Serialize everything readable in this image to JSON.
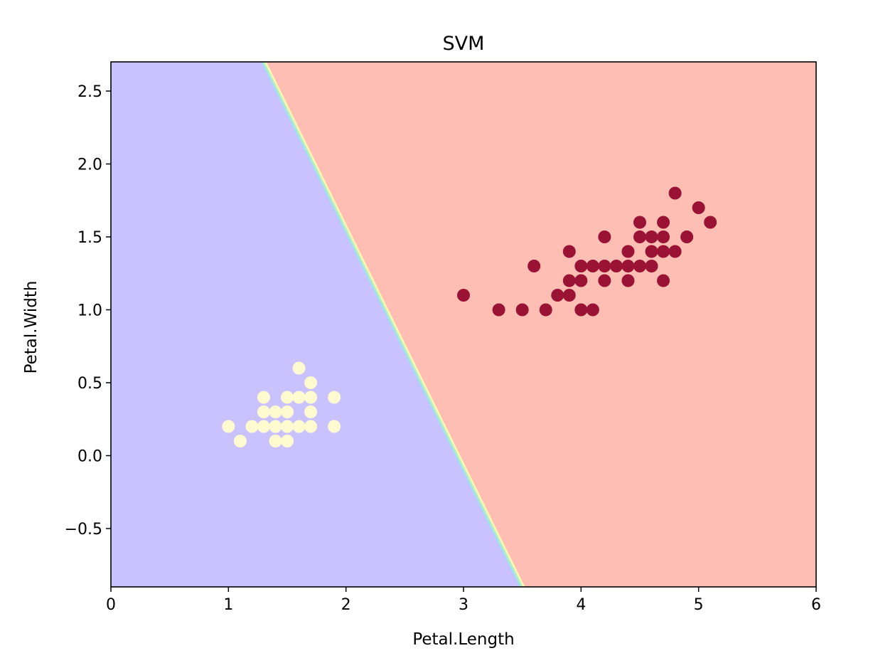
{
  "chart_data": {
    "type": "scatter",
    "title": "SVM",
    "xlabel": "Petal.Length",
    "ylabel": "Petal.Width",
    "xlim": [
      0,
      6
    ],
    "ylim": [
      -0.9,
      2.7
    ],
    "xticks": [
      0,
      1,
      2,
      3,
      4,
      5,
      6
    ],
    "xtick_labels": [
      "0",
      "1",
      "2",
      "3",
      "4",
      "5",
      "6"
    ],
    "yticks": [
      -0.5,
      0.0,
      0.5,
      1.0,
      1.5,
      2.0,
      2.5
    ],
    "ytick_labels": [
      "−0.5",
      "0.0",
      "0.5",
      "1.0",
      "1.5",
      "2.0",
      "2.5"
    ],
    "grid": false,
    "decision_boundary": {
      "points": [
        [
          1.3,
          2.7
        ],
        [
          3.5,
          -0.9
        ]
      ],
      "left_region_color": "#c9c2ff",
      "right_region_color": "#ffbeb3",
      "boundary_colors": [
        "#9fe0f0",
        "#b8f0c0",
        "#fff6b0"
      ]
    },
    "series": [
      {
        "color": "#fffad0",
        "points": [
          [
            1.0,
            0.2
          ],
          [
            1.1,
            0.1
          ],
          [
            1.2,
            0.2
          ],
          [
            1.3,
            0.2
          ],
          [
            1.3,
            0.3
          ],
          [
            1.3,
            0.4
          ],
          [
            1.4,
            0.1
          ],
          [
            1.4,
            0.2
          ],
          [
            1.4,
            0.3
          ],
          [
            1.5,
            0.1
          ],
          [
            1.5,
            0.2
          ],
          [
            1.5,
            0.3
          ],
          [
            1.5,
            0.4
          ],
          [
            1.6,
            0.2
          ],
          [
            1.6,
            0.4
          ],
          [
            1.6,
            0.6
          ],
          [
            1.7,
            0.2
          ],
          [
            1.7,
            0.3
          ],
          [
            1.7,
            0.4
          ],
          [
            1.7,
            0.5
          ],
          [
            1.9,
            0.2
          ],
          [
            1.9,
            0.4
          ]
        ]
      },
      {
        "color": "#9a1234",
        "points": [
          [
            3.0,
            1.1
          ],
          [
            3.3,
            1.0
          ],
          [
            3.5,
            1.0
          ],
          [
            3.6,
            1.3
          ],
          [
            3.7,
            1.0
          ],
          [
            3.8,
            1.1
          ],
          [
            3.9,
            1.1
          ],
          [
            3.9,
            1.2
          ],
          [
            3.9,
            1.4
          ],
          [
            4.0,
            1.0
          ],
          [
            4.0,
            1.2
          ],
          [
            4.0,
            1.3
          ],
          [
            4.1,
            1.0
          ],
          [
            4.1,
            1.3
          ],
          [
            4.2,
            1.2
          ],
          [
            4.2,
            1.3
          ],
          [
            4.2,
            1.5
          ],
          [
            4.3,
            1.3
          ],
          [
            4.4,
            1.2
          ],
          [
            4.4,
            1.3
          ],
          [
            4.4,
            1.4
          ],
          [
            4.5,
            1.3
          ],
          [
            4.5,
            1.5
          ],
          [
            4.5,
            1.6
          ],
          [
            4.6,
            1.3
          ],
          [
            4.6,
            1.4
          ],
          [
            4.6,
            1.5
          ],
          [
            4.7,
            1.2
          ],
          [
            4.7,
            1.4
          ],
          [
            4.7,
            1.5
          ],
          [
            4.7,
            1.6
          ],
          [
            4.8,
            1.4
          ],
          [
            4.8,
            1.8
          ],
          [
            4.9,
            1.5
          ],
          [
            5.0,
            1.7
          ],
          [
            5.1,
            1.6
          ]
        ]
      }
    ]
  }
}
